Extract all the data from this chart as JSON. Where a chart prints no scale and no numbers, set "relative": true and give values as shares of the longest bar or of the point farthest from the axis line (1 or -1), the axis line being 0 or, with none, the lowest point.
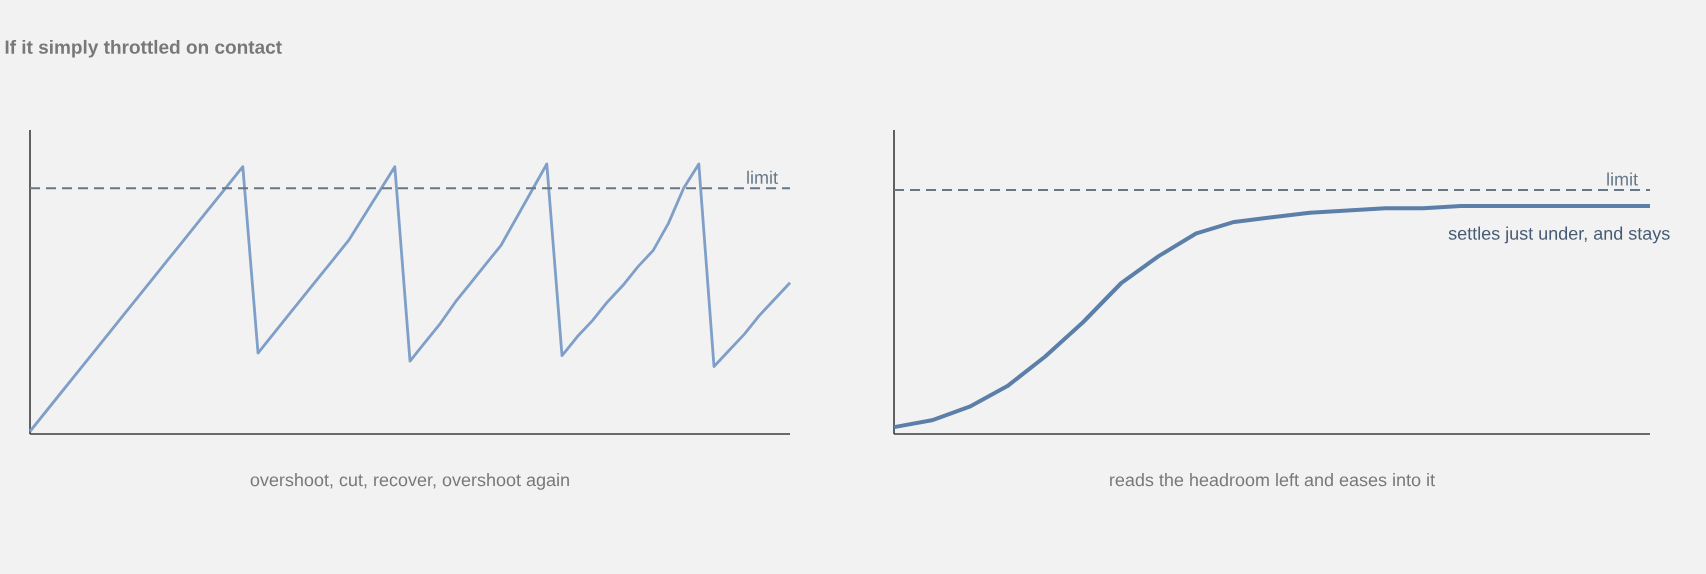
{
  "chart_data": [
    {
      "type": "line",
      "title": "If it simply throttled on contact",
      "xlabel": "overshoot, cut, recover, overshoot again",
      "relative": true,
      "categories": [
        null,
        null,
        null,
        null,
        null,
        null,
        null,
        null,
        null,
        null,
        null,
        null,
        null,
        null,
        null,
        null,
        null,
        null,
        null,
        null,
        null,
        null,
        null,
        null,
        null,
        null,
        null,
        null,
        null,
        null,
        null,
        null,
        null,
        null,
        null,
        null,
        null,
        null,
        null,
        null,
        null,
        null,
        null,
        null,
        null,
        null,
        null,
        null,
        null,
        null,
        null
      ],
      "series": [
        {
          "color": "#7f9fc8",
          "values": [
            0.01,
            0.08,
            0.15,
            0.22,
            0.29,
            0.36,
            0.43,
            0.5,
            0.57,
            0.64,
            0.71,
            0.78,
            0.85,
            0.92,
            0.99,
            0.3,
            0.37,
            0.44,
            0.51,
            0.58,
            0.65,
            0.72,
            0.81,
            0.9,
            0.99,
            0.27,
            0.34,
            0.41,
            0.49,
            0.56,
            0.63,
            0.7,
            0.8,
            0.9,
            1,
            0.29,
            0.36,
            0.42,
            0.49,
            0.55,
            0.62,
            0.68,
            0.78,
            0.91,
            1,
            0.25,
            0.31,
            0.37,
            0.44,
            0.5,
            0.56
          ]
        }
      ],
      "ref_lines": [
        {
          "axis": "y",
          "value": 0.91,
          "label": "limit",
          "color": "#667788",
          "line_style": "dashed"
        }
      ]
    },
    {
      "type": "line",
      "xlabel": "reads the headroom left and eases into it",
      "relative": true,
      "categories": [
        null,
        null,
        null,
        null,
        null,
        null,
        null,
        null,
        null,
        null,
        null,
        null,
        null,
        null,
        null,
        null,
        null,
        null,
        null,
        null,
        null
      ],
      "series": [
        {
          "color": "#5b7fa8",
          "values": [
            0.03,
            0.06,
            0.12,
            0.21,
            0.34,
            0.49,
            0.66,
            0.78,
            0.88,
            0.93,
            0.95,
            0.97,
            0.98,
            0.99,
            0.99,
            1,
            1,
            1,
            1,
            1,
            1
          ]
        }
      ],
      "ref_lines": [
        {
          "axis": "y",
          "value": 1.07,
          "label": "limit",
          "color": "#667788",
          "line_style": "dashed"
        }
      ],
      "annotations": [
        "settles just under, and stays"
      ]
    }
  ]
}
